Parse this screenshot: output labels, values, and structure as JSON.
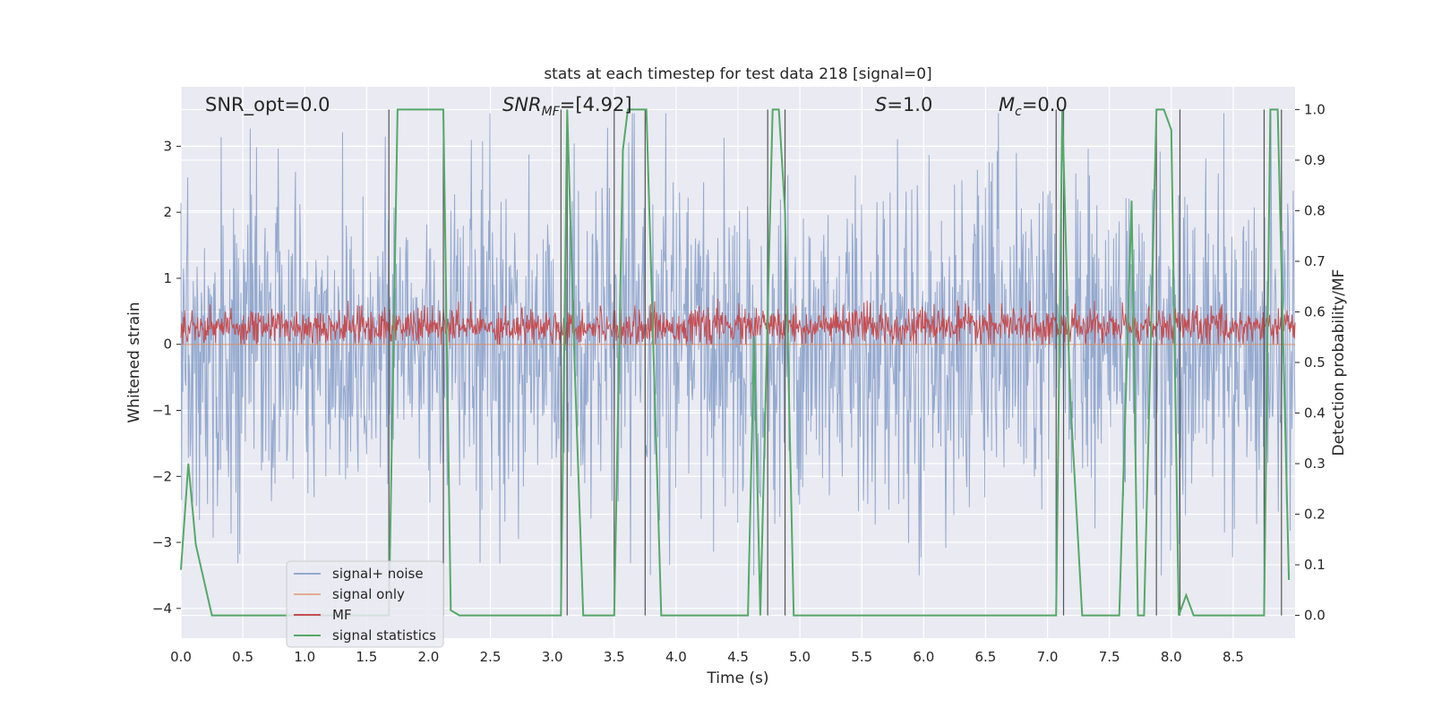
{
  "chart_data": {
    "type": "line",
    "title": "stats at each timestep for test data 218 [signal=0]",
    "xlabel": "Time (s)",
    "ylabel": "Whitened strain",
    "y2label": "Detection probability/MF",
    "xlim": [
      0,
      9.0
    ],
    "ylim": [
      -4.45,
      3.9
    ],
    "y2lim": [
      -0.045,
      1.045
    ],
    "xticks": [
      "0.0",
      "0.5",
      "1.0",
      "1.5",
      "2.0",
      "2.5",
      "3.0",
      "3.5",
      "4.0",
      "4.5",
      "5.0",
      "5.5",
      "6.0",
      "6.5",
      "7.0",
      "7.5",
      "8.0",
      "8.5"
    ],
    "yticks": [
      "3",
      "2",
      "1",
      "0",
      "−1",
      "−2",
      "−3",
      "−4"
    ],
    "y2ticks": [
      "1.0",
      "0.9",
      "0.8",
      "0.7",
      "0.6",
      "0.5",
      "0.4",
      "0.3",
      "0.2",
      "0.1",
      "0.0"
    ],
    "grid": true,
    "legend_position": "lower-left",
    "annotations": {
      "snr_opt": "SNR_opt=0.0",
      "snr_mf_base": "SNR",
      "snr_mf_sub": "MF",
      "snr_mf_value": "=[4.92]",
      "s_italic": "S",
      "s_value": "=1.0",
      "mc_italic": "M",
      "mc_sub": "c",
      "mc_value": "=0.0"
    },
    "series": [
      {
        "name": "signal+ noise",
        "color": "#4c72b0",
        "summary": "whitened noise, roughly -3.5 to 3.5"
      },
      {
        "name": "signal only",
        "color": "#dd8452",
        "summary": "flat at 0"
      },
      {
        "name": "MF",
        "color": "#c44e52",
        "summary": "noisy band roughly 0 to 0.7"
      },
      {
        "name": "signal statistics",
        "color": "#55a868",
        "axis": "right",
        "x": [
          0.0,
          0.06,
          0.12,
          0.25,
          1.68,
          1.75,
          2.12,
          2.18,
          2.25,
          3.07,
          3.12,
          3.18,
          3.25,
          3.5,
          3.57,
          3.61,
          3.76,
          3.88,
          4.58,
          4.63,
          4.68,
          4.78,
          4.83,
          4.88,
          4.95,
          7.07,
          7.12,
          7.18,
          7.28,
          7.58,
          7.68,
          7.73,
          7.78,
          7.88,
          7.94,
          8.0,
          8.06,
          8.12,
          8.18,
          8.75,
          8.8,
          8.86,
          8.95
        ],
        "y": [
          0.09,
          0.3,
          0.14,
          0.0,
          0.0,
          1.0,
          1.0,
          0.01,
          0.0,
          0.0,
          1.0,
          0.5,
          0.0,
          0.0,
          0.92,
          1.0,
          1.0,
          0.0,
          0.0,
          0.55,
          0.0,
          1.0,
          1.0,
          0.8,
          0.0,
          0.0,
          1.0,
          0.45,
          0.0,
          0.0,
          0.82,
          0.0,
          0.0,
          1.0,
          1.0,
          0.96,
          0.0,
          0.04,
          0.0,
          0.0,
          1.0,
          1.0,
          0.07
        ]
      }
    ],
    "vertical_markers": [
      1.68,
      2.12,
      3.07,
      3.12,
      3.5,
      3.75,
      4.74,
      4.88,
      7.07,
      7.13,
      7.88,
      8.07,
      8.75,
      8.89
    ],
    "legend": [
      "signal+ noise",
      "signal only",
      "MF",
      "signal statistics"
    ]
  }
}
